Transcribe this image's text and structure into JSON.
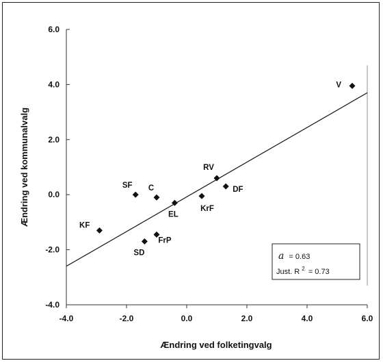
{
  "chart_data": {
    "type": "scatter",
    "xlabel": "Ændring ved folketingvalg",
    "ylabel": "Ændring ved kommunalvalg",
    "xlim": [
      -4.0,
      6.0
    ],
    "ylim": [
      -4.0,
      6.0
    ],
    "x_ticks": [
      "-4.0",
      "-2.0",
      "0.0",
      "2.0",
      "4.0",
      "6.0"
    ],
    "y_ticks": [
      "-4.0",
      "-2.0",
      "0.0",
      "2.0",
      "4.0",
      "6.0"
    ],
    "points": [
      {
        "label": "V",
        "x": 5.5,
        "y": 3.95
      },
      {
        "label": "RV",
        "x": 1.0,
        "y": 0.6
      },
      {
        "label": "DF",
        "x": 1.3,
        "y": 0.3
      },
      {
        "label": "SF",
        "x": -1.7,
        "y": 0.0
      },
      {
        "label": "C",
        "x": -1.0,
        "y": -0.1
      },
      {
        "label": "EL",
        "x": -0.4,
        "y": -0.3
      },
      {
        "label": "KrF",
        "x": 0.5,
        "y": -0.05
      },
      {
        "label": "KF",
        "x": -2.9,
        "y": -1.3
      },
      {
        "label": "SD",
        "x": -1.4,
        "y": -1.7
      },
      {
        "label": "FrP",
        "x": -1.0,
        "y": -1.45
      }
    ],
    "trendline": {
      "x": [
        -4.0,
        6.0
      ],
      "y": [
        -2.6,
        3.7
      ]
    },
    "grid": false,
    "legend": "none",
    "stats": {
      "alpha_symbol": "a",
      "alpha_value": "= 0.63",
      "r2_prefix": "Just. R",
      "r2_sup": "2",
      "r2_value": "= 0.73"
    }
  }
}
